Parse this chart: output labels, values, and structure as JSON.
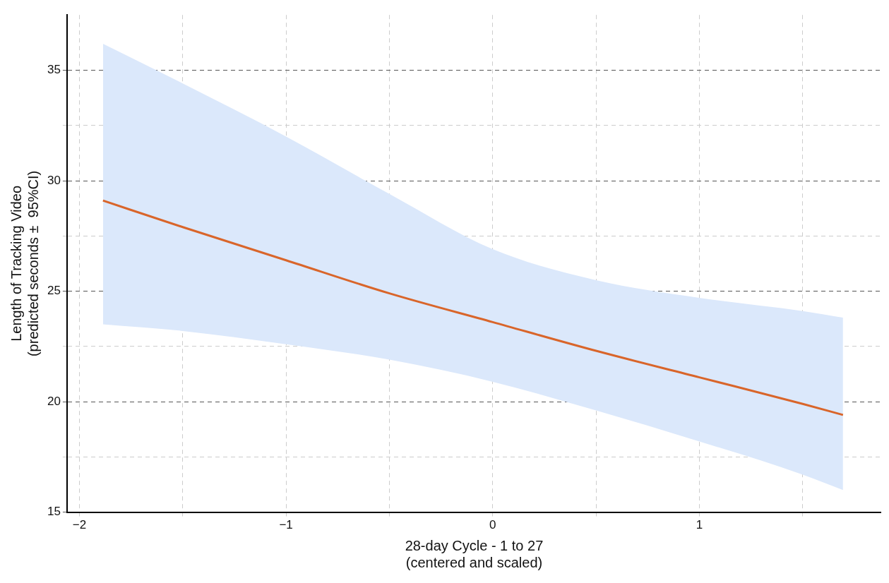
{
  "chart_data": {
    "type": "line",
    "xlabel": "28-day Cycle - 1 to 27\n(centered and scaled)",
    "ylabel": "Length of Tracking Video\n(predicted seconds ±  95%CI)",
    "x": [
      -1.886,
      -1.5,
      -1,
      -0.5,
      0,
      0.5,
      1,
      1.5,
      1.695
    ],
    "series": [
      {
        "color": "#d9652a",
        "values": [
          29.1,
          27.9,
          26.4,
          24.9,
          23.6,
          22.3,
          21.1,
          19.9,
          19.4
        ],
        "lower": [
          23.5,
          23.2,
          22.6,
          21.9,
          20.9,
          19.6,
          18.2,
          16.7,
          16.0
        ],
        "upper": [
          36.2,
          34.4,
          32.0,
          29.4,
          26.9,
          25.5,
          24.7,
          24.1,
          23.8
        ]
      }
    ],
    "xlim": [
      -2.06,
      1.88
    ],
    "xticks": [
      {
        "value": -2,
        "label": "−2"
      },
      {
        "value": -1.5,
        "label": null
      },
      {
        "value": -1,
        "label": "−1"
      },
      {
        "value": -0.5,
        "label": null
      },
      0,
      {
        "value": 0.5,
        "label": null
      },
      1,
      {
        "value": 1.5,
        "label": null
      }
    ],
    "ylim": [
      15,
      37.5
    ],
    "yticks": [
      15,
      {
        "value": 17.5,
        "label": null
      },
      20,
      {
        "value": 22.5,
        "label": null
      },
      25,
      {
        "value": 27.5,
        "label": null
      },
      30,
      {
        "value": 32.5,
        "label": null
      },
      35
    ],
    "grid": true,
    "legend": false,
    "marker": "none",
    "line_style": "solid"
  }
}
